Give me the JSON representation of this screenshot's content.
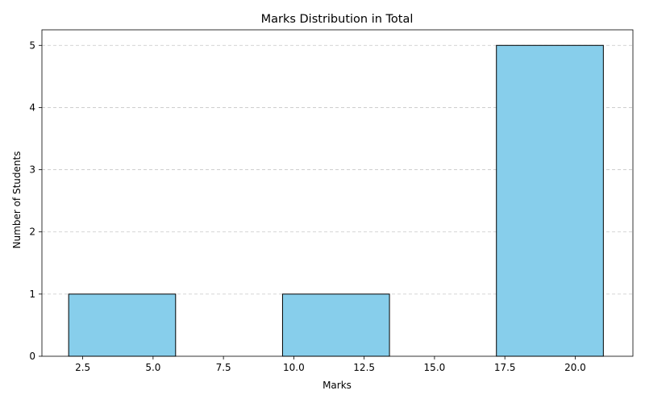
{
  "chart_data": {
    "type": "bar",
    "title": "Marks Distribution in Total",
    "xlabel": "Marks",
    "ylabel": "Number of Students",
    "xlim": [
      1.05,
      22.05
    ],
    "ylim": [
      0,
      5.25
    ],
    "x_ticks": [
      2.5,
      5.0,
      7.5,
      10.0,
      12.5,
      15.0,
      17.5,
      20.0
    ],
    "x_tick_labels": [
      "2.5",
      "5.0",
      "7.5",
      "10.0",
      "12.5",
      "15.0",
      "17.5",
      "20.0"
    ],
    "y_ticks": [
      0,
      1,
      2,
      3,
      4,
      5
    ],
    "y_tick_labels": [
      "0",
      "1",
      "2",
      "3",
      "4",
      "5"
    ],
    "bins": [
      {
        "start": 2.0,
        "end": 5.8,
        "value": 1
      },
      {
        "start": 5.8,
        "end": 9.6,
        "value": 0
      },
      {
        "start": 9.6,
        "end": 13.4,
        "value": 1
      },
      {
        "start": 13.4,
        "end": 17.2,
        "value": 0
      },
      {
        "start": 17.2,
        "end": 21.0,
        "value": 5
      }
    ],
    "grid": "y-dashed",
    "bar_color": "#87CEEB",
    "edge_color": "#000000",
    "grid_color": "#b0b0b0"
  }
}
